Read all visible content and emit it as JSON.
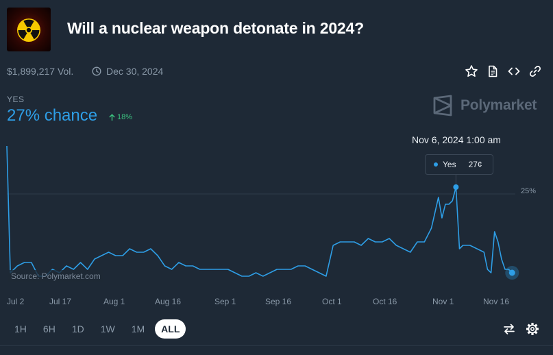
{
  "market": {
    "title": "Will a nuclear weapon detonate in 2024?",
    "volume": "$1,899,217 Vol.",
    "end_date": "Dec 30, 2024",
    "icon": "radiation-icon"
  },
  "actions": {
    "top": [
      "star-icon",
      "document-icon",
      "embed-code-icon",
      "link-icon"
    ],
    "bottom": [
      "swap-arrows-icon",
      "gear-icon"
    ]
  },
  "outcome": {
    "label": "YES",
    "chance": "27% chance",
    "change": "18%"
  },
  "brand": {
    "name": "Polymarket"
  },
  "tooltip": {
    "date": "Nov 6, 2024 1:00 am",
    "series": "Yes",
    "value": "27¢"
  },
  "source": "Source: Polymarket.com",
  "ranges": {
    "items": [
      "1H",
      "6H",
      "1D",
      "1W",
      "1M",
      "ALL"
    ],
    "selected": "ALL"
  },
  "colors": {
    "background": "#1e2936",
    "accent": "#2e9ee6",
    "positive": "#3cc380",
    "muted": "#8a99a8"
  },
  "chart_data": {
    "type": "line",
    "xlabel": "",
    "ylabel": "",
    "x_tick_labels": [
      "Jul 2",
      "Jul 17",
      "Aug 1",
      "Aug 16",
      "Sep 1",
      "Sep 16",
      "Oct 1",
      "Oct 16",
      "Nov 1",
      "Nov 16"
    ],
    "y_tick_labels": [
      "25%"
    ],
    "y_ticks": [
      25
    ],
    "ylim": [
      0,
      39
    ],
    "grid": "horizontal at 25%",
    "legend": "none",
    "series": [
      {
        "name": "Yes",
        "color": "#2e9ee6",
        "x": [
          "2024-07-01",
          "2024-07-02",
          "2024-07-04",
          "2024-07-06",
          "2024-07-08",
          "2024-07-10",
          "2024-07-12",
          "2024-07-14",
          "2024-07-16",
          "2024-07-18",
          "2024-07-20",
          "2024-07-22",
          "2024-07-24",
          "2024-07-26",
          "2024-07-28",
          "2024-07-30",
          "2024-08-01",
          "2024-08-03",
          "2024-08-05",
          "2024-08-07",
          "2024-08-09",
          "2024-08-11",
          "2024-08-13",
          "2024-08-15",
          "2024-08-17",
          "2024-08-19",
          "2024-08-21",
          "2024-08-23",
          "2024-08-25",
          "2024-08-27",
          "2024-08-29",
          "2024-08-31",
          "2024-09-02",
          "2024-09-04",
          "2024-09-06",
          "2024-09-08",
          "2024-09-10",
          "2024-09-12",
          "2024-09-14",
          "2024-09-16",
          "2024-09-18",
          "2024-09-20",
          "2024-09-22",
          "2024-09-24",
          "2024-09-26",
          "2024-09-28",
          "2024-09-30",
          "2024-10-02",
          "2024-10-04",
          "2024-10-06",
          "2024-10-08",
          "2024-10-10",
          "2024-10-12",
          "2024-10-14",
          "2024-10-16",
          "2024-10-18",
          "2024-10-20",
          "2024-10-22",
          "2024-10-24",
          "2024-10-26",
          "2024-10-28",
          "2024-10-30",
          "2024-11-01",
          "2024-11-02",
          "2024-11-03",
          "2024-11-04",
          "2024-11-05",
          "2024-11-06",
          "2024-11-07",
          "2024-11-08",
          "2024-11-10",
          "2024-11-12",
          "2024-11-14",
          "2024-11-15",
          "2024-11-16",
          "2024-11-17",
          "2024-11-18",
          "2024-11-19",
          "2024-11-20",
          "2024-11-21",
          "2024-11-22"
        ],
        "values": [
          39,
          2,
          4,
          5,
          5,
          1,
          1,
          3,
          2,
          4,
          3,
          5,
          3,
          6,
          7,
          8,
          7,
          7,
          9,
          8,
          8,
          9,
          7,
          4,
          3,
          5,
          4,
          4,
          3,
          3,
          3,
          3,
          3,
          2,
          1,
          1,
          2,
          1,
          2,
          3,
          3,
          3,
          4,
          4,
          3,
          2,
          1,
          10,
          11,
          11,
          11,
          10,
          12,
          11,
          11,
          12,
          10,
          9,
          8,
          11,
          11,
          15,
          24,
          18,
          22,
          22,
          23,
          27,
          9,
          10,
          10,
          9,
          8,
          3,
          2,
          14,
          11,
          6,
          3,
          3,
          2
        ]
      }
    ],
    "hover_point": {
      "x": "2024-11-06",
      "y": 27
    }
  }
}
